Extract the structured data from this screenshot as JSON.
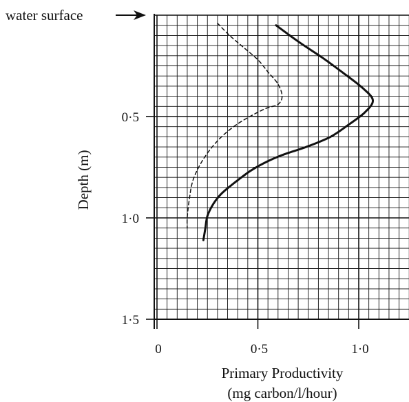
{
  "chart_data": {
    "type": "line",
    "ylabel": "Depth (m)",
    "xlabel_line1": "Primary Productivity",
    "xlabel_line2": "(mg carbon/l/hour)",
    "annotation": "water surface",
    "xlim": [
      0,
      1.25
    ],
    "ylim": [
      0,
      1.5
    ],
    "y_inverted": true,
    "grid": true,
    "x_ticks": [
      {
        "value": 0,
        "label": "0"
      },
      {
        "value": 0.5,
        "label": "0·5"
      },
      {
        "value": 1.0,
        "label": "1·0"
      }
    ],
    "y_ticks": [
      {
        "value": 0.5,
        "label": "0·5"
      },
      {
        "value": 1.0,
        "label": "1·0"
      },
      {
        "value": 1.5,
        "label": "1·5"
      }
    ],
    "series": [
      {
        "style": "solid",
        "color": "#111111",
        "points": [
          [
            0.59,
            0.05
          ],
          [
            0.7,
            0.13
          ],
          [
            0.82,
            0.21
          ],
          [
            0.93,
            0.29
          ],
          [
            1.02,
            0.36
          ],
          [
            1.07,
            0.42
          ],
          [
            1.03,
            0.48
          ],
          [
            0.95,
            0.54
          ],
          [
            0.86,
            0.6
          ],
          [
            0.74,
            0.65
          ],
          [
            0.62,
            0.69
          ],
          [
            0.53,
            0.73
          ],
          [
            0.46,
            0.77
          ],
          [
            0.38,
            0.83
          ],
          [
            0.32,
            0.88
          ],
          [
            0.28,
            0.93
          ],
          [
            0.25,
            0.99
          ],
          [
            0.24,
            1.05
          ],
          [
            0.23,
            1.11
          ]
        ]
      },
      {
        "style": "dashed",
        "color": "#111111",
        "points": [
          [
            0.3,
            0.04
          ],
          [
            0.36,
            0.1
          ],
          [
            0.43,
            0.16
          ],
          [
            0.5,
            0.22
          ],
          [
            0.55,
            0.28
          ],
          [
            0.6,
            0.34
          ],
          [
            0.62,
            0.4
          ],
          [
            0.6,
            0.44
          ],
          [
            0.54,
            0.46
          ],
          [
            0.46,
            0.5
          ],
          [
            0.38,
            0.55
          ],
          [
            0.3,
            0.62
          ],
          [
            0.23,
            0.71
          ],
          [
            0.18,
            0.81
          ],
          [
            0.16,
            0.91
          ],
          [
            0.15,
            1.0
          ],
          [
            0.15,
            1.05
          ]
        ]
      }
    ]
  }
}
